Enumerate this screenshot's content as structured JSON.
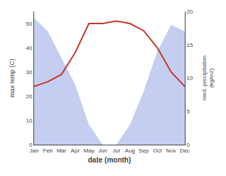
{
  "chart_data": {
    "type": "line",
    "categories": [
      "Jan",
      "Feb",
      "Mar",
      "Apr",
      "May",
      "Jun",
      "Jul",
      "Aug",
      "Sep",
      "Oct",
      "Nov",
      "Dec"
    ],
    "series": [
      {
        "type": "area",
        "axis": "y2",
        "color": "#c5cef0",
        "values": [
          19,
          17,
          13,
          9,
          3,
          0,
          0,
          3,
          8,
          14,
          18,
          17
        ]
      },
      {
        "type": "line",
        "color": "#c0392b",
        "values": [
          24,
          26,
          29,
          38,
          50,
          50,
          51,
          50,
          47,
          40,
          30,
          24
        ]
      }
    ],
    "xlabel": "date (month)",
    "ylabel": "max temp (C)",
    "y2label": "med. precipitation\n(kg/m2)",
    "ylim": [
      0,
      55
    ],
    "yticks": [
      0,
      10,
      20,
      30,
      40,
      50
    ],
    "y2lim": [
      0,
      20
    ],
    "y2ticks": [
      0,
      5,
      10,
      15,
      20
    ],
    "grid": false
  }
}
